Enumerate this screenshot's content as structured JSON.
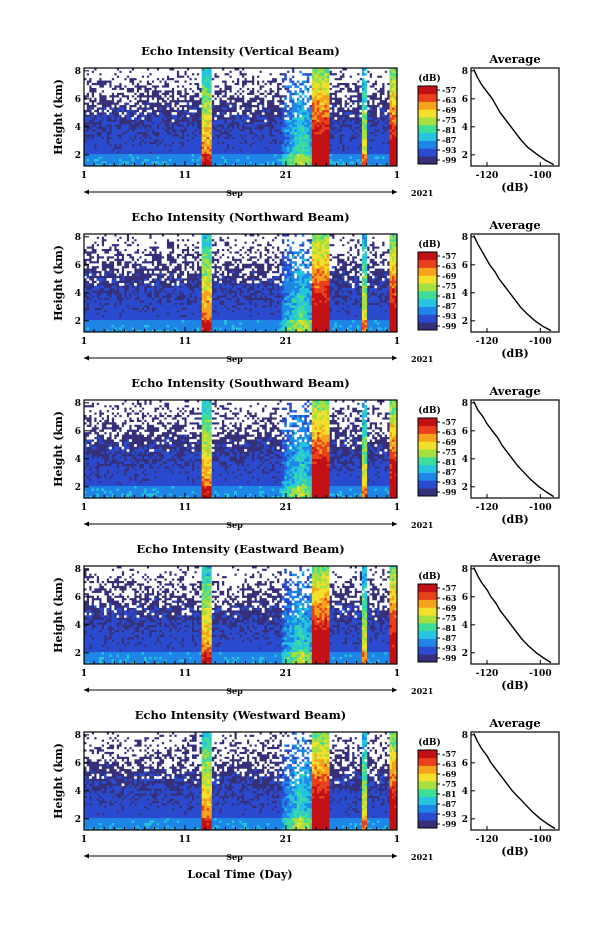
{
  "figure": {
    "x_label": "Local Time (Day)",
    "month_label": "Sep",
    "year_label": "2021"
  },
  "colors": {
    "scale": [
      "#36307a",
      "#2a4bd0",
      "#1f86e8",
      "#25c4e0",
      "#3fdc9a",
      "#a6e040",
      "#f2e02a",
      "#f7a21d",
      "#e8411c",
      "#c21015"
    ],
    "background_no_echo": "#ffffff"
  },
  "chart_data": [
    {
      "type": "heatmap",
      "title": "Echo Intensity (Vertical Beam)",
      "ylabel": "Height (km)",
      "xlabel": "",
      "x_ticks": [
        "1",
        "11",
        "21",
        "1"
      ],
      "x_range": [
        1,
        32
      ],
      "y_ticks": [
        "8",
        "6",
        "4",
        "2"
      ],
      "y_range": [
        1.2,
        8.2
      ],
      "colorbar": {
        "label": "(dB)",
        "ticks": [
          "-57",
          "-63",
          "-69",
          "-75",
          "-81",
          "-87",
          "-93",
          "-99"
        ]
      },
      "average": {
        "title": "Average",
        "xlabel": "(dB)",
        "x_ticks": [
          "-120",
          "-100"
        ],
        "x_range": [
          -126,
          -93
        ],
        "y_ticks": [
          "8",
          "6",
          "4",
          "2"
        ],
        "y_range": [
          1.2,
          8.2
        ],
        "profile": {
          "height_km": [
            8.1,
            7.5,
            7.0,
            6.5,
            6.0,
            5.5,
            5.0,
            4.5,
            4.0,
            3.5,
            3.0,
            2.5,
            2.0,
            1.6,
            1.3
          ],
          "intensity_db": [
            -125,
            -123.5,
            -122,
            -120,
            -118,
            -116.5,
            -115,
            -113,
            -111,
            -109,
            -107,
            -104.5,
            -101,
            -98,
            -95
          ]
        }
      }
    },
    {
      "type": "heatmap",
      "title": "Echo Intensity (Northward Beam)",
      "ylabel": "Height (km)",
      "xlabel": "",
      "x_ticks": [
        "1",
        "11",
        "21",
        "1"
      ],
      "x_range": [
        1,
        32
      ],
      "y_ticks": [
        "8",
        "6",
        "4",
        "2"
      ],
      "y_range": [
        1.2,
        8.2
      ],
      "colorbar": {
        "label": "(dB)",
        "ticks": [
          "-57",
          "-63",
          "-69",
          "-75",
          "-81",
          "-87",
          "-93",
          "-99"
        ]
      },
      "average": {
        "title": "Average",
        "xlabel": "(dB)",
        "x_ticks": [
          "-120",
          "-100"
        ],
        "x_range": [
          -126,
          -93
        ],
        "y_ticks": [
          "8",
          "6",
          "4",
          "2"
        ],
        "y_range": [
          1.2,
          8.2
        ],
        "profile": {
          "height_km": [
            8.1,
            7.5,
            7.0,
            6.5,
            6.0,
            5.5,
            5.0,
            4.5,
            4.0,
            3.5,
            3.0,
            2.5,
            2.0,
            1.6,
            1.3
          ],
          "intensity_db": [
            -125,
            -123.5,
            -122,
            -120.5,
            -119,
            -117,
            -115.5,
            -113.5,
            -111.5,
            -109.5,
            -107.5,
            -105,
            -102,
            -99,
            -96
          ]
        }
      }
    },
    {
      "type": "heatmap",
      "title": "Echo Intensity (Southward Beam)",
      "ylabel": "Height (km)",
      "xlabel": "",
      "x_ticks": [
        "1",
        "11",
        "21",
        "1"
      ],
      "x_range": [
        1,
        32
      ],
      "y_ticks": [
        "8",
        "6",
        "4",
        "2"
      ],
      "y_range": [
        1.2,
        8.2
      ],
      "colorbar": {
        "label": "(dB)",
        "ticks": [
          "-57",
          "-63",
          "-69",
          "-75",
          "-81",
          "-87",
          "-93",
          "-99"
        ]
      },
      "average": {
        "title": "Average",
        "xlabel": "(dB)",
        "x_ticks": [
          "-120",
          "-100"
        ],
        "x_range": [
          -126,
          -93
        ],
        "y_ticks": [
          "8",
          "6",
          "4",
          "2"
        ],
        "y_range": [
          1.2,
          8.2
        ],
        "profile": {
          "height_km": [
            8.1,
            7.5,
            7.0,
            6.5,
            6.0,
            5.5,
            5.0,
            4.5,
            4.0,
            3.5,
            3.0,
            2.5,
            2.0,
            1.6,
            1.3
          ],
          "intensity_db": [
            -125,
            -123.5,
            -121.5,
            -120,
            -118,
            -116,
            -114.5,
            -112.5,
            -110.5,
            -108.5,
            -106,
            -103.5,
            -100.5,
            -97.5,
            -95
          ]
        }
      }
    },
    {
      "type": "heatmap",
      "title": "Echo Intensity (Eastward Beam)",
      "ylabel": "Height (km)",
      "xlabel": "",
      "x_ticks": [
        "1",
        "11",
        "21",
        "1"
      ],
      "x_range": [
        1,
        32
      ],
      "y_ticks": [
        "8",
        "6",
        "4",
        "2"
      ],
      "y_range": [
        1.2,
        8.2
      ],
      "colorbar": {
        "label": "(dB)",
        "ticks": [
          "-57",
          "-63",
          "-69",
          "-75",
          "-81",
          "-87",
          "-93",
          "-99"
        ]
      },
      "average": {
        "title": "Average",
        "xlabel": "(dB)",
        "x_ticks": [
          "-120",
          "-100"
        ],
        "x_range": [
          -126,
          -93
        ],
        "y_ticks": [
          "8",
          "6",
          "4",
          "2"
        ],
        "y_range": [
          1.2,
          8.2
        ],
        "profile": {
          "height_km": [
            8.1,
            7.5,
            7.0,
            6.5,
            6.0,
            5.5,
            5.0,
            4.5,
            4.0,
            3.5,
            3.0,
            2.5,
            2.0,
            1.6,
            1.3
          ],
          "intensity_db": [
            -125,
            -123.5,
            -122,
            -120,
            -118.5,
            -116.5,
            -115,
            -113,
            -111,
            -109,
            -107,
            -104.5,
            -101.5,
            -98.5,
            -96
          ]
        }
      }
    },
    {
      "type": "heatmap",
      "title": "Echo Intensity (Westward Beam)",
      "ylabel": "Height (km)",
      "xlabel": "",
      "x_ticks": [
        "1",
        "11",
        "21",
        "1"
      ],
      "x_range": [
        1,
        32
      ],
      "y_ticks": [
        "8",
        "6",
        "4",
        "2"
      ],
      "y_range": [
        1.2,
        8.2
      ],
      "colorbar": {
        "label": "(dB)",
        "ticks": [
          "-57",
          "-63",
          "-69",
          "-75",
          "-81",
          "-87",
          "-93",
          "-99"
        ]
      },
      "average": {
        "title": "Average",
        "xlabel": "(dB)",
        "x_ticks": [
          "-120",
          "-100"
        ],
        "x_range": [
          -126,
          -93
        ],
        "y_ticks": [
          "8",
          "6",
          "4",
          "2"
        ],
        "y_range": [
          1.2,
          8.2
        ],
        "profile": {
          "height_km": [
            8.1,
            7.5,
            7.0,
            6.5,
            6.0,
            5.5,
            5.0,
            4.5,
            4.0,
            3.5,
            3.0,
            2.5,
            2.0,
            1.6,
            1.3
          ],
          "intensity_db": [
            -125,
            -123.5,
            -122,
            -120,
            -118.5,
            -116.5,
            -114.5,
            -112.5,
            -110.5,
            -108,
            -105.5,
            -103,
            -100,
            -97,
            -94.5
          ]
        }
      }
    }
  ]
}
